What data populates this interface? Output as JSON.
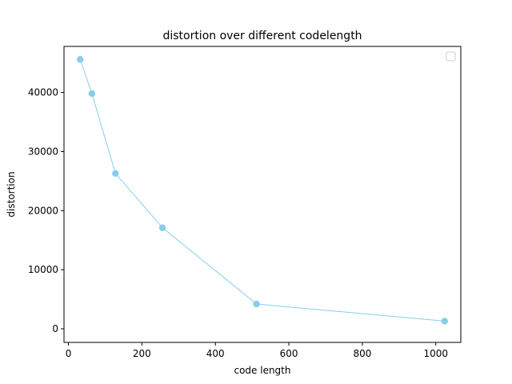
{
  "chart_data": {
    "type": "line",
    "title": "distortion over different codelength",
    "xlabel": "code length",
    "ylabel": "distortion",
    "xlim": [
      -12,
      1068
    ],
    "ylim": [
      -2300,
      47800
    ],
    "xticks": [
      0,
      200,
      400,
      600,
      800,
      1000
    ],
    "yticks": [
      0,
      10000,
      20000,
      30000,
      40000
    ],
    "grid": false,
    "legend": "top-right",
    "series": [
      {
        "color": "#87ceeb",
        "x": [
          32,
          64,
          128,
          256,
          512,
          1024
        ],
        "y": [
          45600,
          39800,
          26300,
          17100,
          4200,
          1300
        ]
      }
    ]
  }
}
